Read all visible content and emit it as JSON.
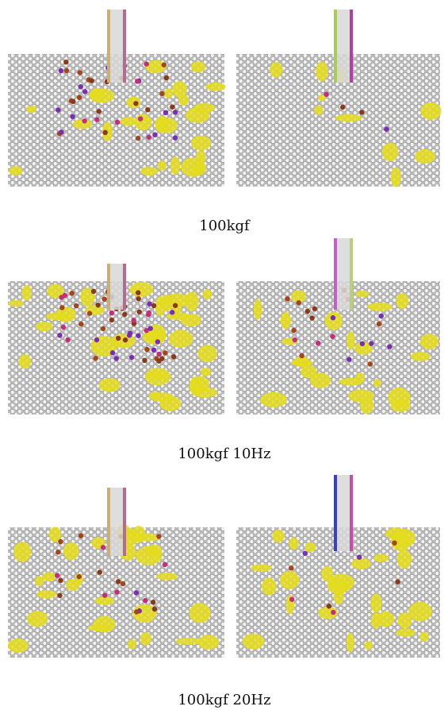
{
  "captions": [
    "100kgf",
    "100kgf 10Hz",
    "100kgf 20Hz"
  ]
}
